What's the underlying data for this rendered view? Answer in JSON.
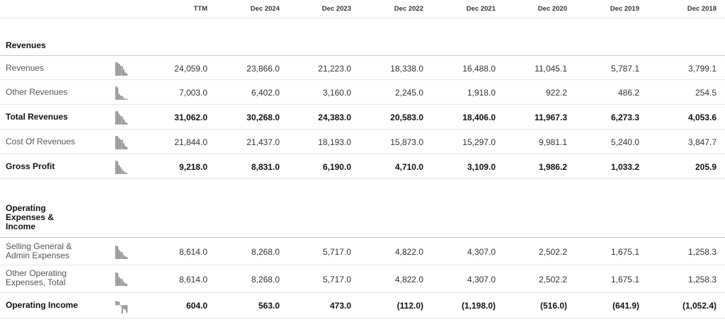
{
  "columns": [
    "TTM",
    "Dec 2024",
    "Dec 2023",
    "Dec 2022",
    "Dec 2021",
    "Dec 2020",
    "Dec 2019",
    "Dec 2018"
  ],
  "sections": [
    {
      "title": "Revenues",
      "rows": [
        {
          "label": "Revenues",
          "bold": false,
          "values": [
            "24,059.0",
            "23,866.0",
            "21,223.0",
            "18,338.0",
            "16,488.0",
            "11,045.1",
            "5,787.1",
            "3,799.1"
          ],
          "trend": [
            24059.0,
            23866.0,
            21223.0,
            18338.0,
            16488.0,
            11045.1,
            5787.1,
            3799.1
          ]
        },
        {
          "label": "Other Revenues",
          "bold": false,
          "values": [
            "7,003.0",
            "6,402.0",
            "3,160.0",
            "2,245.0",
            "1,918.0",
            "922.2",
            "486.2",
            "254.5"
          ],
          "trend": [
            7003.0,
            6402.0,
            3160.0,
            2245.0,
            1918.0,
            922.2,
            486.2,
            254.5
          ]
        },
        {
          "label": "Total Revenues",
          "bold": true,
          "values": [
            "31,062.0",
            "30,268.0",
            "24,383.0",
            "20,583.0",
            "18,406.0",
            "11,967.3",
            "6,273.3",
            "4,053.6"
          ],
          "trend": [
            31062.0,
            30268.0,
            24383.0,
            20583.0,
            18406.0,
            11967.3,
            6273.3,
            4053.6
          ]
        },
        {
          "label": "Cost Of Revenues",
          "bold": false,
          "values": [
            "21,844.0",
            "21,437.0",
            "18,193.0",
            "15,873.0",
            "15,297.0",
            "9,981.1",
            "5,240.0",
            "3,847.7"
          ],
          "trend": [
            21844.0,
            21437.0,
            18193.0,
            15873.0,
            15297.0,
            9981.1,
            5240.0,
            3847.7
          ]
        },
        {
          "label": "Gross Profit",
          "bold": true,
          "values": [
            "9,218.0",
            "8,831.0",
            "6,190.0",
            "4,710.0",
            "3,109.0",
            "1,986.2",
            "1,033.2",
            "205.9"
          ],
          "trend": [
            9218.0,
            8831.0,
            6190.0,
            4710.0,
            3109.0,
            1986.2,
            1033.2,
            205.9
          ]
        }
      ]
    },
    {
      "title": "Operating Expenses & Income",
      "rows": [
        {
          "label": "Selling General & Admin Expenses",
          "bold": false,
          "values": [
            "8,614.0",
            "8,268.0",
            "5,717.0",
            "4,822.0",
            "4,307.0",
            "2,502.2",
            "1,675.1",
            "1,258.3"
          ],
          "trend": [
            8614.0,
            8268.0,
            5717.0,
            4822.0,
            4307.0,
            2502.2,
            1675.1,
            1258.3
          ]
        },
        {
          "label": "Other Operating Expenses, Total",
          "bold": false,
          "values": [
            "8,614.0",
            "8,268.0",
            "5,717.0",
            "4,822.0",
            "4,307.0",
            "2,502.2",
            "1,675.1",
            "1,258.3"
          ],
          "trend": [
            8614.0,
            8268.0,
            5717.0,
            4822.0,
            4307.0,
            2502.2,
            1675.1,
            1258.3
          ]
        },
        {
          "label": "Operating Income",
          "bold": true,
          "values": [
            "604.0",
            "563.0",
            "473.0",
            "(112.0)",
            "(1,198.0)",
            "(516.0)",
            "(641.9)",
            "(1,052.4)"
          ],
          "trend": [
            604.0,
            563.0,
            473.0,
            -112.0,
            -1198.0,
            -516.0,
            -641.9,
            -1052.4
          ]
        }
      ]
    }
  ]
}
